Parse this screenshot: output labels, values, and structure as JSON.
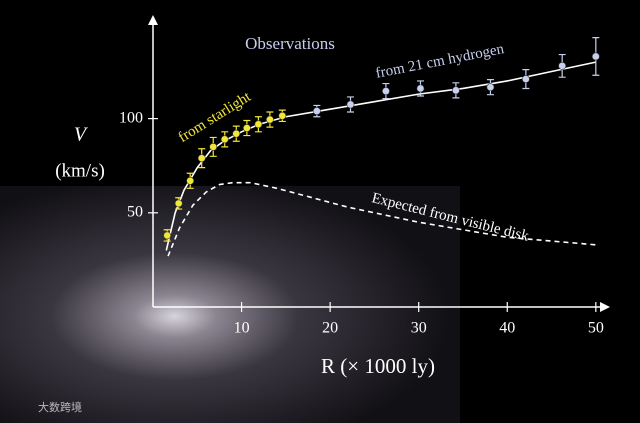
{
  "chart_data": {
    "type": "scatter",
    "title": "Observations",
    "y_label": "V",
    "y_unit": "(km/s)",
    "x_label": "R (× 1000 ly)",
    "watermark": "大数跨境",
    "xlim": [
      0,
      51.6
    ],
    "ylim": [
      0,
      155
    ],
    "xticks": [
      10,
      20,
      30,
      40,
      50
    ],
    "yticks": [
      50,
      100
    ],
    "series": [
      {
        "name": "from starlight",
        "color": "#f2e63a",
        "kind": "points",
        "x": [
          1.6,
          2.9,
          4.2,
          5.5,
          6.8,
          8.1,
          9.4,
          10.6,
          11.9,
          13.2,
          14.6
        ],
        "values": [
          38,
          55,
          67,
          79,
          85,
          89,
          92,
          95,
          97,
          99.5,
          101.5
        ],
        "errors": [
          3,
          3,
          4,
          5,
          5,
          4,
          4,
          4,
          4,
          4,
          3
        ]
      },
      {
        "name": "from 21 cm hydrogen",
        "color": "#c8d0ee",
        "kind": "points",
        "x": [
          18.5,
          22.3,
          26.3,
          30.2,
          34.2,
          38.1,
          42.1,
          46.2,
          50
        ],
        "values": [
          104,
          107.5,
          114.6,
          116,
          115,
          116.7,
          121,
          128,
          133
        ],
        "errors": [
          3,
          4,
          4,
          4,
          4,
          4,
          5,
          6,
          10
        ]
      },
      {
        "color": "#ffffff",
        "kind": "line",
        "x": [
          1.5,
          2.5,
          3.5,
          5,
          6.5,
          8,
          10,
          12,
          15,
          20,
          25,
          30,
          35,
          40,
          45,
          50
        ],
        "values": [
          30,
          50,
          62,
          74,
          83,
          88,
          93,
          97,
          101,
          105,
          109,
          113,
          116,
          120,
          125,
          130
        ]
      },
      {
        "name": "Expected from visible disk",
        "color": "#ffffff",
        "kind": "dashed",
        "x": [
          1.7,
          3,
          4.5,
          6,
          7.5,
          9,
          11,
          14,
          18,
          22,
          26,
          30,
          35,
          40,
          45,
          50
        ],
        "values": [
          27,
          42,
          54,
          61,
          65,
          66,
          66,
          63,
          58,
          53,
          49,
          45,
          41,
          37,
          35,
          33
        ]
      }
    ]
  }
}
